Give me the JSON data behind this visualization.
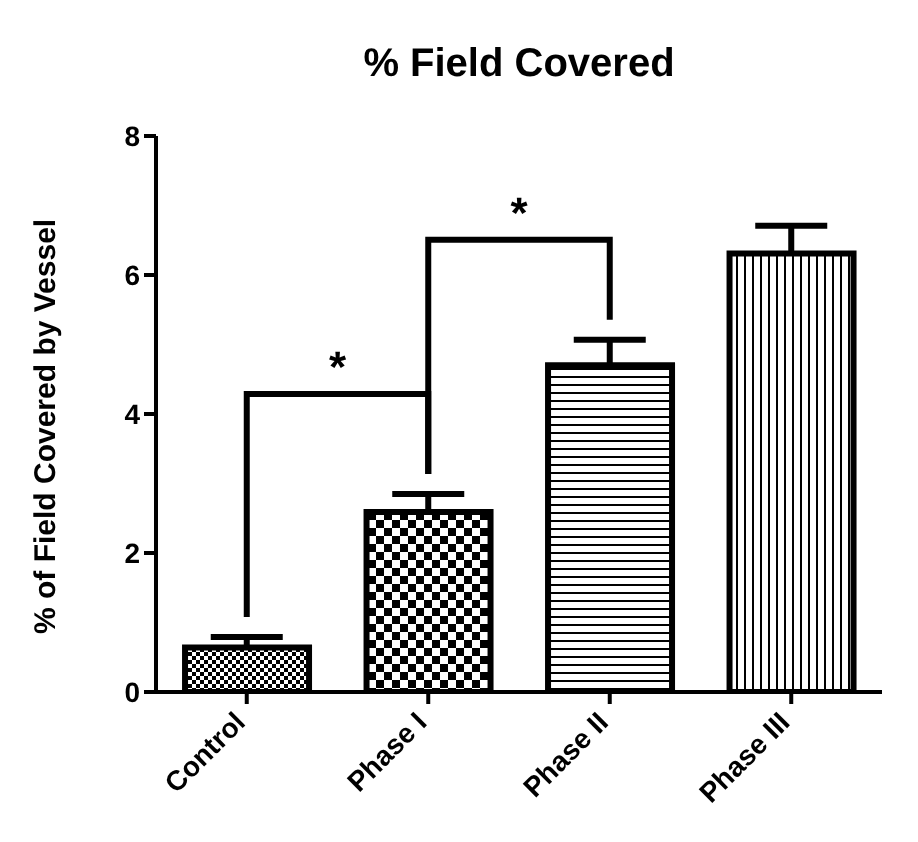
{
  "chart_data": {
    "type": "bar",
    "title": "% Field Covered",
    "ylabel": "% of Field Covered by Vessel",
    "categories": [
      "Control",
      "Phase I",
      "Phase II",
      "Phase III"
    ],
    "values": [
      0.64,
      2.59,
      4.7,
      6.31
    ],
    "errors": [
      [
        0.64,
        0.79
      ],
      [
        2.59,
        2.85
      ],
      [
        4.7,
        5.07
      ],
      [
        6.31,
        6.71
      ]
    ],
    "color": "#000000",
    "ylim": [
      0,
      8
    ],
    "yticks": [
      0,
      2,
      4,
      6,
      8
    ],
    "grid": false,
    "annotations": [
      "*",
      "*"
    ]
  }
}
